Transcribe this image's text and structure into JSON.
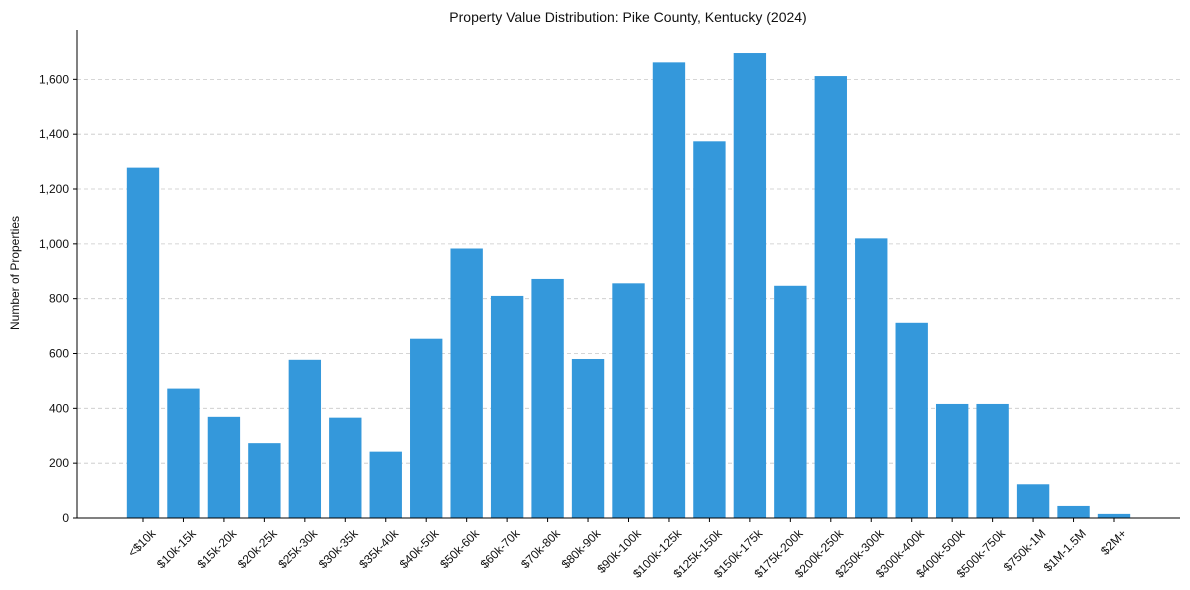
{
  "chart_data": {
    "type": "bar",
    "title": "Property Value Distribution: Pike County, Kentucky (2024)",
    "xlabel": "",
    "ylabel": "Number of Properties",
    "ylim": [
      0,
      1780
    ],
    "yticks": [
      0,
      200,
      400,
      600,
      800,
      1000,
      1200,
      1400,
      1600
    ],
    "ytick_labels": [
      "0",
      "200",
      "400",
      "600",
      "800",
      "1,000",
      "1,200",
      "1,400",
      "1,600"
    ],
    "grid": "horizontal dashed",
    "bar_color": "#3498db",
    "categories": [
      "<$10k",
      "$10k-15k",
      "$15k-20k",
      "$20k-25k",
      "$25k-30k",
      "$30k-35k",
      "$35k-40k",
      "$40k-50k",
      "$50k-60k",
      "$60k-70k",
      "$70k-80k",
      "$80k-90k",
      "$90k-100k",
      "$100k-125k",
      "$125k-150k",
      "$150k-175k",
      "$175k-200k",
      "$200k-250k",
      "$250k-300k",
      "$300k-400k",
      "$400k-500k",
      "$500k-750k",
      "$750k-1M",
      "$1M-1.5M",
      "$2M+"
    ],
    "values": [
      1278,
      472,
      369,
      273,
      577,
      366,
      242,
      654,
      983,
      810,
      872,
      580,
      856,
      1662,
      1374,
      1696,
      847,
      1612,
      1020,
      712,
      416,
      416,
      123,
      44,
      15
    ]
  }
}
